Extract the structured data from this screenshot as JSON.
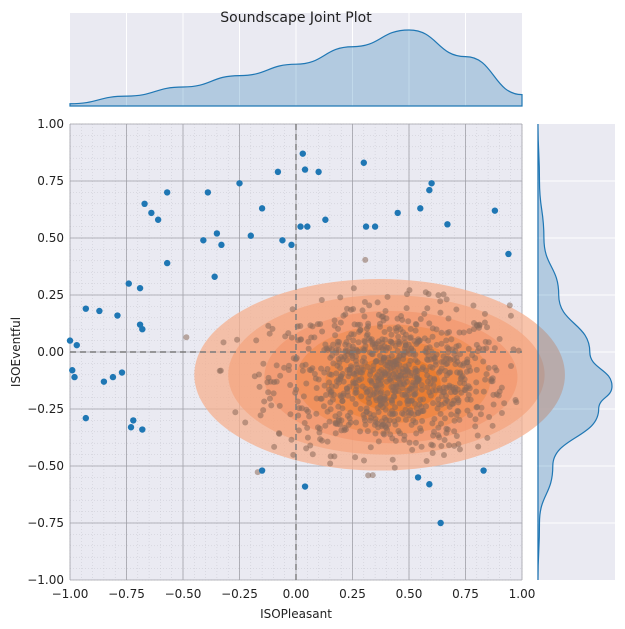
{
  "chart_data": {
    "type": "scatter",
    "title": "Soundscape Joint Plot",
    "xlabel": "ISOPleasant",
    "ylabel": "ISOEventful",
    "xlim": [
      -1.0,
      1.0
    ],
    "ylim": [
      -1.0,
      1.0
    ],
    "xticks": [
      "−1.00",
      "−0.75",
      "−0.50",
      "−0.25",
      "0.00",
      "0.25",
      "0.50",
      "0.75",
      "1.00"
    ],
    "yticks": [
      "−1.00",
      "−0.75",
      "−0.50",
      "−0.25",
      "0.00",
      "0.25",
      "0.50",
      "0.75",
      "1.00"
    ],
    "grid": true,
    "reference_lines": {
      "x": 0.0,
      "y": 0.0
    },
    "colors": {
      "points": "#1f77b4",
      "density_fill": "#ff7f0e",
      "density_outer": "#f4a582",
      "background": "#eaeaf2",
      "marginal": "#1f77b4"
    },
    "density_center": [
      0.42,
      -0.12
    ],
    "outlier_points": [
      [
        -1.0,
        0.05
      ],
      [
        -0.97,
        0.03
      ],
      [
        -0.99,
        -0.08
      ],
      [
        -0.98,
        -0.11
      ],
      [
        -0.93,
        0.19
      ],
      [
        -0.93,
        -0.29
      ],
      [
        -0.87,
        0.18
      ],
      [
        -0.85,
        -0.13
      ],
      [
        -0.81,
        -0.11
      ],
      [
        -0.79,
        0.16
      ],
      [
        -0.77,
        -0.09
      ],
      [
        -0.74,
        0.3
      ],
      [
        -0.73,
        -0.33
      ],
      [
        -0.72,
        -0.3
      ],
      [
        -0.69,
        0.28
      ],
      [
        -0.69,
        0.12
      ],
      [
        -0.68,
        0.1
      ],
      [
        -0.68,
        -0.34
      ],
      [
        -0.67,
        0.65
      ],
      [
        -0.64,
        0.61
      ],
      [
        -0.61,
        0.58
      ],
      [
        -0.57,
        0.7
      ],
      [
        -0.57,
        0.39
      ],
      [
        -0.41,
        0.49
      ],
      [
        -0.39,
        0.7
      ],
      [
        -0.36,
        0.33
      ],
      [
        -0.35,
        0.52
      ],
      [
        -0.33,
        0.47
      ],
      [
        -0.25,
        0.74
      ],
      [
        -0.2,
        0.51
      ],
      [
        -0.15,
        0.63
      ],
      [
        -0.08,
        0.79
      ],
      [
        -0.06,
        0.49
      ],
      [
        -0.02,
        0.47
      ],
      [
        0.02,
        0.55
      ],
      [
        0.03,
        0.87
      ],
      [
        0.04,
        0.8
      ],
      [
        0.05,
        0.55
      ],
      [
        0.1,
        0.79
      ],
      [
        0.13,
        0.58
      ],
      [
        0.3,
        0.83
      ],
      [
        0.31,
        0.55
      ],
      [
        0.35,
        0.55
      ],
      [
        0.45,
        0.61
      ],
      [
        0.55,
        0.63
      ],
      [
        0.59,
        0.71
      ],
      [
        0.6,
        0.74
      ],
      [
        0.67,
        0.56
      ],
      [
        0.88,
        0.62
      ],
      [
        0.94,
        0.43
      ],
      [
        -0.15,
        -0.52
      ],
      [
        0.04,
        -0.59
      ],
      [
        0.54,
        -0.55
      ],
      [
        0.59,
        -0.58
      ],
      [
        0.64,
        -0.75
      ],
      [
        0.83,
        -0.52
      ]
    ],
    "marginal_x": {
      "x": [
        -1.0,
        -0.75,
        -0.5,
        -0.25,
        0.0,
        0.25,
        0.5,
        0.75,
        1.0
      ],
      "density": [
        0.03,
        0.13,
        0.25,
        0.4,
        0.55,
        0.78,
        1.0,
        0.65,
        0.15
      ]
    },
    "marginal_y": {
      "y": [
        1.0,
        0.75,
        0.5,
        0.25,
        0.0,
        -0.15,
        -0.25,
        -0.5,
        -0.75,
        -1.0
      ],
      "density": [
        0.0,
        0.02,
        0.08,
        0.28,
        0.7,
        1.0,
        0.82,
        0.2,
        0.02,
        0.0
      ]
    }
  }
}
